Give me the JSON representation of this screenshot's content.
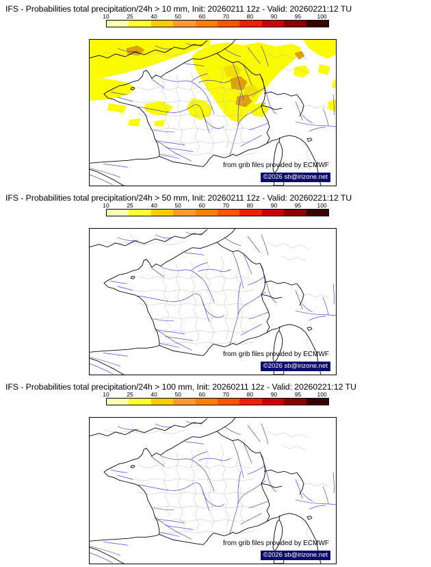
{
  "colorbar": {
    "ticks": [
      "10",
      "25",
      "40",
      "50",
      "60",
      "70",
      "80",
      "90",
      "95",
      "100"
    ],
    "colors": [
      "#ffffb2",
      "#ffff33",
      "#ffcc00",
      "#ff9933",
      "#ff7f00",
      "#ff5500",
      "#ee2200",
      "#cc0000",
      "#880000",
      "#3d0000"
    ]
  },
  "panels": [
    {
      "threshold": "10 mm",
      "title": "IFS - Probabilities total precipitation/24h > 10 mm, Init: 20260211 12z - Valid: 20260221:12 TU",
      "credit_provider": "from grib files provided by ECMWF",
      "credit_copyright": "©2026 sb@irizone.net"
    },
    {
      "threshold": "50 mm",
      "title": "IFS - Probabilities total precipitation/24h > 50 mm, Init: 20260211 12z - Valid: 20260221:12 TU",
      "credit_provider": "from grib files provided by ECMWF",
      "credit_copyright": "©2026 sb@irizone.net"
    },
    {
      "threshold": "100 mm",
      "title": "IFS - Probabilities total precipitation/24h > 100 mm, Init: 20260211 12z - Valid: 20260221:12 TU",
      "credit_provider": "from grib files provided by ECMWF",
      "credit_copyright": "©2026 sb@irizone.net"
    }
  ],
  "map_colors": {
    "coastline": "#000000",
    "rivers": "#2828cd",
    "department_boundaries": "#bcbcbc",
    "precip_yellow": "#fafa00",
    "precip_dark_yellow": "#f0e000",
    "precip_orange": "#e0a000",
    "copyright_bg": "#0b0b6b",
    "copyright_fg": "#ffffff"
  }
}
